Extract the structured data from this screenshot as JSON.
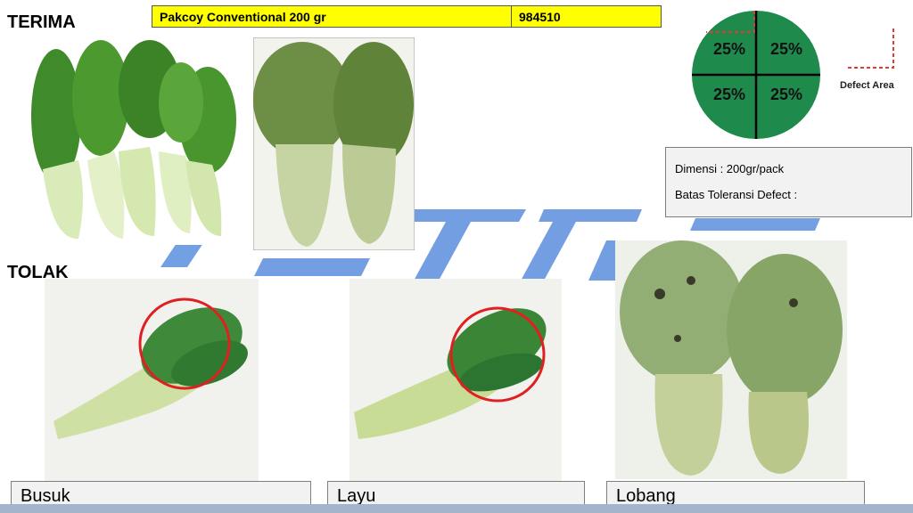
{
  "sections": {
    "accept_label": "TERIMA",
    "reject_label": "TOLAK"
  },
  "product": {
    "name": "Pakcoy Conventional 200 gr",
    "code": "984510"
  },
  "defect_diagram": {
    "quadrants": [
      "25%",
      "25%",
      "25%",
      "25%"
    ],
    "legend_label": "Defect Area",
    "circle_color": "#1e8a4c",
    "marker_color": "#e53935"
  },
  "info": {
    "dimension": "Dimensi : 200gr/pack",
    "tolerance": "Batas Toleransi Defect :"
  },
  "reject_captions": [
    "Busuk",
    "Layu",
    "Lobang"
  ],
  "watermark_color": "#5b8fdd"
}
